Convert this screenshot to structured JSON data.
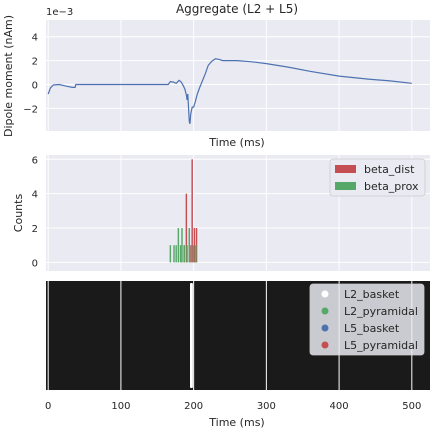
{
  "figure": {
    "background": "#ffffff",
    "panel_background": "#eaeaf2",
    "grid_color": "#ffffff",
    "raster_background": "#1a1a1a"
  },
  "chart_data": [
    {
      "type": "line",
      "title": "Aggregate (L2 + L5)",
      "xlabel": "Time (ms)",
      "ylabel": "Dipole moment (nAm)",
      "y_multiplier": "1e−3",
      "xlim": [
        -3,
        525
      ],
      "ylim": [
        -3.9,
        5.4
      ],
      "x_ticks": [
        0,
        100,
        200,
        300,
        400,
        500
      ],
      "x_tick_labels_shown": false,
      "y_ticks": [
        -2,
        0,
        2,
        4
      ],
      "y_tick_labels": [
        "−2",
        "0",
        "2",
        "4"
      ],
      "grid": true,
      "color": "#4c72b0",
      "points": [
        [
          0,
          -0.8
        ],
        [
          3,
          -0.3
        ],
        [
          7,
          -0.05
        ],
        [
          15,
          0.0
        ],
        [
          25,
          -0.15
        ],
        [
          33,
          -0.25
        ],
        [
          37,
          -0.25
        ],
        [
          38,
          0.0
        ],
        [
          60,
          0.0
        ],
        [
          100,
          0.0
        ],
        [
          140,
          0.0
        ],
        [
          165,
          0.0
        ],
        [
          168,
          0.25
        ],
        [
          172,
          0.2
        ],
        [
          176,
          0.1
        ],
        [
          180,
          0.35
        ],
        [
          183,
          0.2
        ],
        [
          186,
          -0.15
        ],
        [
          188,
          -0.4
        ],
        [
          190,
          -0.9
        ],
        [
          191,
          -1.3
        ],
        [
          192,
          -0.8
        ],
        [
          193,
          -1.9
        ],
        [
          194,
          -3.1
        ],
        [
          195,
          -3.3
        ],
        [
          196,
          -2.5
        ],
        [
          198,
          -1.9
        ],
        [
          200,
          -1.9
        ],
        [
          202,
          -1.5
        ],
        [
          205,
          -0.8
        ],
        [
          208,
          -0.3
        ],
        [
          212,
          0.3
        ],
        [
          216,
          0.9
        ],
        [
          220,
          1.6
        ],
        [
          225,
          1.95
        ],
        [
          230,
          2.15
        ],
        [
          235,
          2.1
        ],
        [
          240,
          2.0
        ],
        [
          260,
          2.0
        ],
        [
          280,
          1.9
        ],
        [
          300,
          1.75
        ],
        [
          330,
          1.45
        ],
        [
          360,
          1.1
        ],
        [
          400,
          0.7
        ],
        [
          440,
          0.45
        ],
        [
          470,
          0.3
        ],
        [
          500,
          0.1
        ]
      ]
    },
    {
      "type": "bar",
      "xlabel": "",
      "ylabel": "Counts",
      "xlim": [
        -3,
        525
      ],
      "ylim": [
        -0.5,
        6.25
      ],
      "x_ticks": [
        0,
        100,
        200,
        300,
        400,
        500
      ],
      "y_ticks": [
        0,
        2,
        4,
        6
      ],
      "y_tick_labels": [
        "0",
        "2",
        "4",
        "6"
      ],
      "bar_width": 2,
      "grid": true,
      "legend_position": "top-right",
      "series": [
        {
          "name": "beta_dist",
          "color": "#c44e52",
          "bars": [
            [
              187,
              1
            ],
            [
              190,
              4
            ],
            [
              195,
              1
            ],
            [
              198,
              6
            ],
            [
              201,
              2
            ],
            [
              204,
              2
            ]
          ]
        },
        {
          "name": "beta_prox",
          "color": "#55a868",
          "bars": [
            [
              168,
              1
            ],
            [
              173,
              1
            ],
            [
              176,
              1
            ],
            [
              179,
              2
            ],
            [
              182,
              1
            ],
            [
              184,
              2
            ],
            [
              187,
              1
            ],
            [
              191,
              1
            ],
            [
              194,
              2
            ],
            [
              197,
              1
            ],
            [
              200,
              1
            ],
            [
              203,
              1
            ]
          ]
        }
      ]
    },
    {
      "type": "scatter",
      "xlabel": "Time (ms)",
      "ylabel": "",
      "xlim": [
        -3,
        525
      ],
      "x_ticks": [
        0,
        100,
        200,
        300,
        400,
        500
      ],
      "x_tick_labels": [
        "0",
        "100",
        "200",
        "300",
        "400",
        "500"
      ],
      "grid": true,
      "legend_position": "top-right",
      "spike_region": [
        195,
        199
      ],
      "series": [
        {
          "name": "L2_basket",
          "color": "#ffffff"
        },
        {
          "name": "L2_pyramidal",
          "color": "#55a868"
        },
        {
          "name": "L5_basket",
          "color": "#4c72b0"
        },
        {
          "name": "L5_pyramidal",
          "color": "#c44e52"
        }
      ]
    }
  ]
}
